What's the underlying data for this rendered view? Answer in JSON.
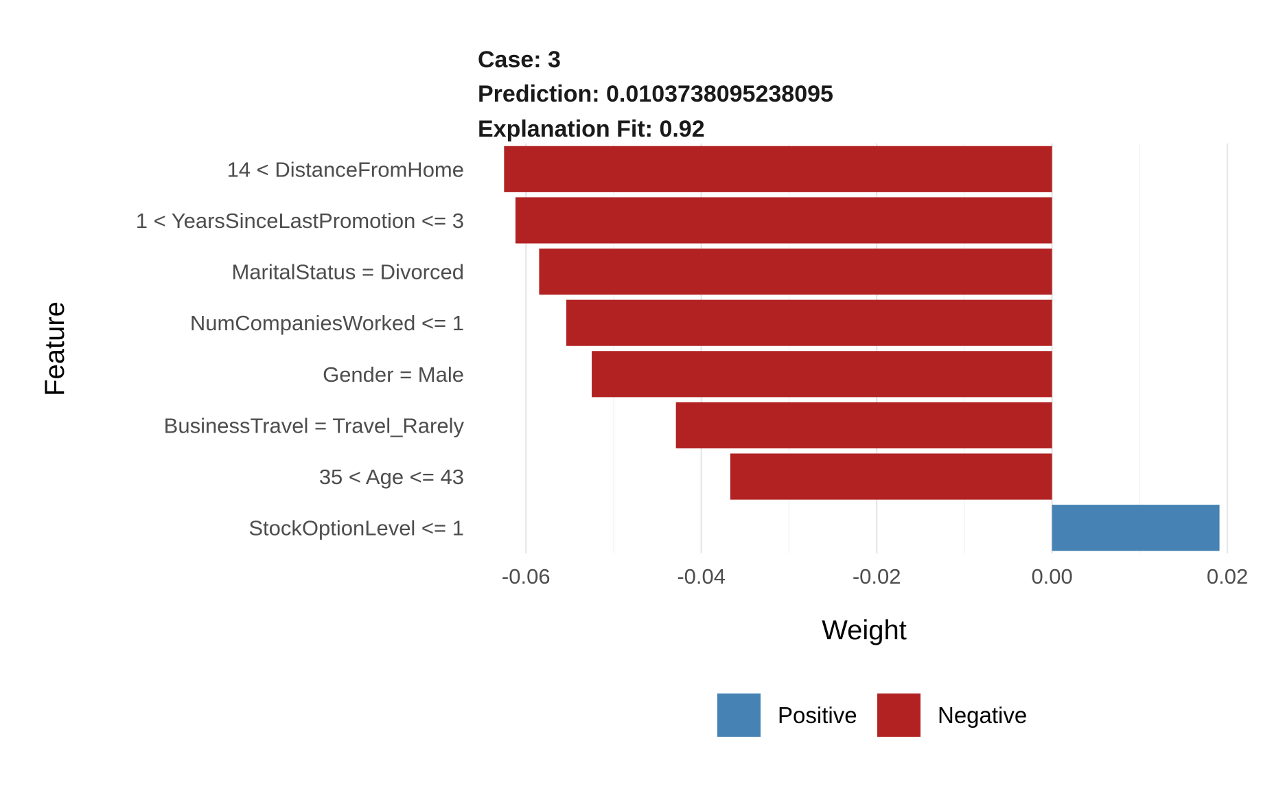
{
  "chart_data": {
    "type": "bar",
    "orientation": "horizontal",
    "title_lines": [
      "Case: 3",
      "Prediction: 0.0103738095238095",
      "Explanation Fit: 0.92"
    ],
    "xlabel": "Weight",
    "ylabel": "Feature",
    "xlim": [
      -0.0655,
      0.0225
    ],
    "xticks": [
      -0.06,
      -0.04,
      -0.02,
      0.0,
      0.02
    ],
    "xtick_labels": [
      "-0.06",
      "-0.04",
      "-0.02",
      "0.00",
      "0.02"
    ],
    "grid": true,
    "categories": [
      "14 < DistanceFromHome",
      "1 < YearsSinceLastPromotion <= 3",
      "MaritalStatus = Divorced",
      "NumCompaniesWorked <= 1",
      "Gender = Male",
      "BusinessTravel = Travel_Rarely",
      "35 < Age <= 43",
      "StockOptionLevel <= 1"
    ],
    "values": [
      -0.0625,
      -0.0612,
      -0.0585,
      -0.0554,
      -0.0525,
      -0.0429,
      -0.0367,
      0.0191
    ],
    "legend": {
      "position": "bottom",
      "entries": [
        {
          "label": "Positive",
          "color": "#4682B4"
        },
        {
          "label": "Negative",
          "color": "#B22222"
        }
      ]
    },
    "colors": {
      "positive": "#4682B4",
      "negative": "#B22222"
    }
  }
}
